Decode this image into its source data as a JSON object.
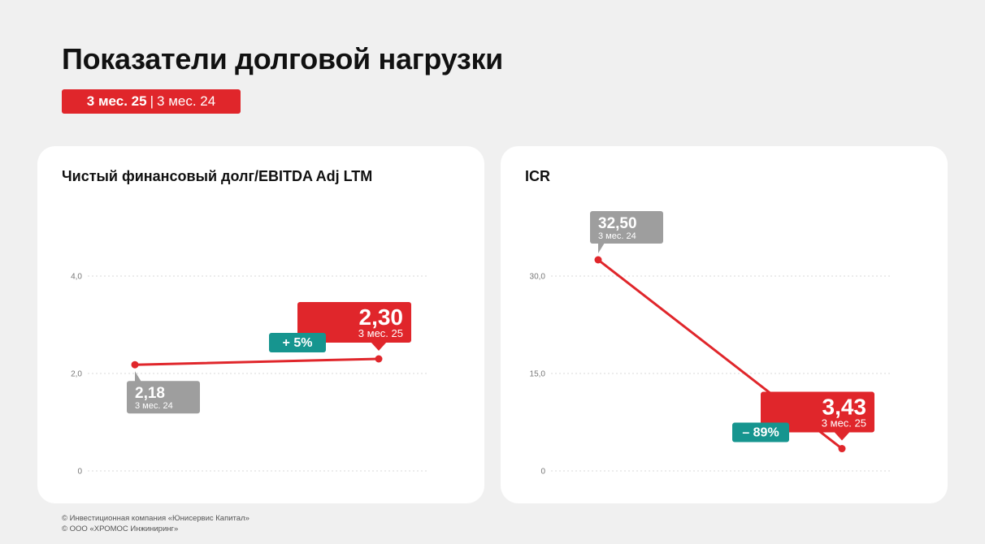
{
  "page": {
    "title": "Показатели долговой нагрузки",
    "period_current": "3 мес. 25",
    "period_separator": "|",
    "period_previous": "3 мес. 24"
  },
  "colors": {
    "accent": "#e0262b",
    "previous": "#9e9e9e",
    "change": "#16958f",
    "background": "#f0f0f0",
    "card": "#ffffff"
  },
  "chart_data": [
    {
      "type": "line",
      "title": "Чистый финансовый долг/EBITDA Adj LTM",
      "ylim": [
        0,
        4
      ],
      "yticks": [
        0,
        2,
        4
      ],
      "ytick_labels": [
        "0",
        "2,0",
        "4,0"
      ],
      "grid": true,
      "points": [
        {
          "x": "3 мес. 24",
          "y": 2.18,
          "value_label": "2,18",
          "period_label": "3 мес. 24"
        },
        {
          "x": "3 мес. 25",
          "y": 2.3,
          "value_label": "2,30",
          "period_label": "3 мес. 25"
        }
      ],
      "change_label": "+ 5%"
    },
    {
      "type": "line",
      "title": "ICR",
      "ylim": [
        0,
        30
      ],
      "yticks": [
        0,
        15,
        30
      ],
      "ytick_labels": [
        "0",
        "15,0",
        "30,0"
      ],
      "grid": true,
      "points": [
        {
          "x": "3 мес. 24",
          "y": 32.5,
          "value_label": "32,50",
          "period_label": "3 мес. 24"
        },
        {
          "x": "3 мес. 25",
          "y": 3.43,
          "value_label": "3,43",
          "period_label": "3 мес. 25"
        }
      ],
      "change_label": "– 89%"
    }
  ],
  "footer": {
    "line1": "© Инвестиционная компания «Юнисервис Капитал»",
    "line2": "© ООО «ХРОМОС Инжиниринг»"
  }
}
